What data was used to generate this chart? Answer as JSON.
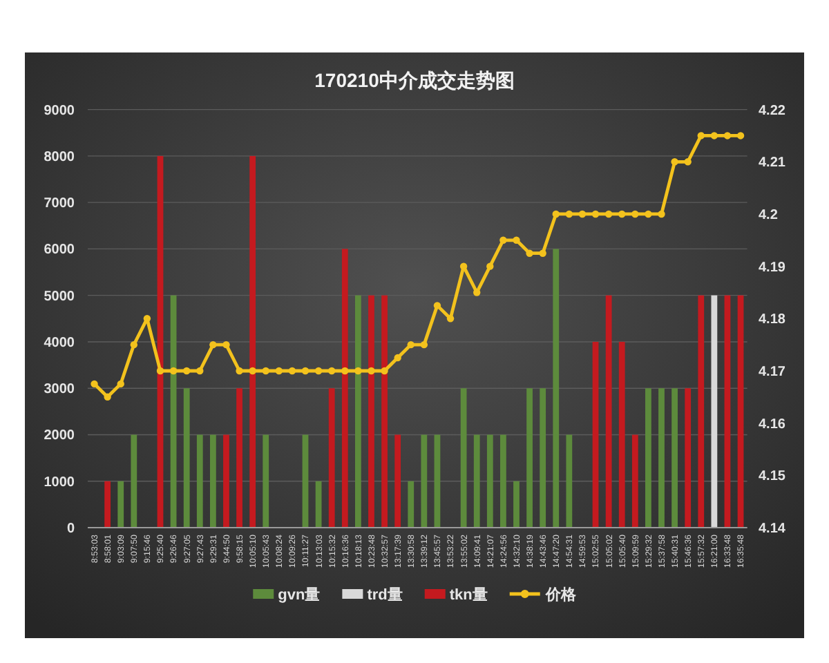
{
  "chart_data": {
    "type": "bar",
    "title": "170210中介成交走势图",
    "categories": [
      "8:53:03",
      "8:58:01",
      "9:03:09",
      "9:07:50",
      "9:15:46",
      "9:25:40",
      "9:26:46",
      "9:27:05",
      "9:27:43",
      "9:29:31",
      "9:44:50",
      "9:58:15",
      "10:05:10",
      "10:05:43",
      "10:08:24",
      "10:09:26",
      "10:11:27",
      "10:13:03",
      "10:15:32",
      "10:16:36",
      "10:18:13",
      "10:23:48",
      "10:32:57",
      "13:17:39",
      "13:30:58",
      "13:39:12",
      "13:45:57",
      "13:53:22",
      "13:55:02",
      "14:09:41",
      "14:21:07",
      "14:24:56",
      "14:32:10",
      "14:38:19",
      "14:43:46",
      "14:47:20",
      "14:54:31",
      "14:59:53",
      "15:02:55",
      "15:05:02",
      "15:05:40",
      "15:09:59",
      "15:29:32",
      "15:37:58",
      "15:40:31",
      "15:46:36",
      "15:57:32",
      "16:21:00",
      "16:33:48",
      "16:35:48"
    ],
    "series": [
      {
        "name": "gvn量",
        "color": "#5d8b3c",
        "values": [
          null,
          null,
          1000,
          2000,
          null,
          null,
          5000,
          3000,
          2000,
          2000,
          null,
          null,
          null,
          2000,
          null,
          null,
          2000,
          1000,
          null,
          null,
          5000,
          null,
          null,
          null,
          1000,
          2000,
          2000,
          null,
          3000,
          2000,
          2000,
          2000,
          1000,
          3000,
          3000,
          6000,
          2000,
          null,
          null,
          null,
          null,
          null,
          3000,
          3000,
          3000,
          null,
          null,
          null,
          null,
          null
        ]
      },
      {
        "name": "trd量",
        "color": "#d9d9d9",
        "values": [
          null,
          null,
          null,
          null,
          null,
          null,
          null,
          null,
          null,
          null,
          null,
          null,
          null,
          null,
          null,
          null,
          null,
          null,
          null,
          null,
          null,
          null,
          null,
          null,
          null,
          null,
          null,
          null,
          null,
          null,
          null,
          null,
          null,
          null,
          null,
          null,
          null,
          null,
          null,
          null,
          null,
          null,
          null,
          null,
          null,
          null,
          null,
          5000,
          null,
          null
        ]
      },
      {
        "name": "tkn量",
        "color": "#c41a1f",
        "values": [
          null,
          1000,
          null,
          null,
          null,
          8000,
          null,
          null,
          null,
          null,
          2000,
          3000,
          8000,
          null,
          null,
          null,
          null,
          null,
          3000,
          6000,
          null,
          5000,
          5000,
          2000,
          null,
          null,
          null,
          null,
          null,
          null,
          null,
          null,
          null,
          null,
          null,
          null,
          null,
          null,
          4000,
          5000,
          4000,
          2000,
          null,
          null,
          null,
          3000,
          5000,
          null,
          5000,
          5000
        ]
      },
      {
        "name": "价格",
        "type": "line",
        "axis": "y2",
        "color": "#f3c21d",
        "values": [
          4.1675,
          4.165,
          4.1675,
          4.175,
          4.18,
          4.17,
          4.17,
          4.17,
          4.17,
          4.175,
          4.175,
          4.17,
          4.17,
          4.17,
          4.17,
          4.17,
          4.17,
          4.17,
          4.17,
          4.17,
          4.17,
          4.17,
          4.17,
          4.1725,
          4.175,
          4.175,
          4.1825,
          4.18,
          4.19,
          4.185,
          4.19,
          4.195,
          4.195,
          4.1925,
          4.1925,
          4.2,
          4.2,
          4.2,
          4.2,
          4.2,
          4.2,
          4.2,
          4.2,
          4.2,
          4.21,
          4.21,
          4.215,
          4.215,
          4.215,
          4.215
        ]
      }
    ],
    "stacked": true,
    "ylim": [
      0,
      9000
    ],
    "yticks": [
      0,
      1000,
      2000,
      3000,
      4000,
      5000,
      6000,
      7000,
      8000,
      9000
    ],
    "y2lim": [
      4.14,
      4.22
    ],
    "y2ticks": [
      4.14,
      4.15,
      4.16,
      4.17,
      4.18,
      4.19,
      4.2,
      4.21,
      4.22
    ],
    "grid": "y",
    "legend": "bottom",
    "marker": "circle",
    "line_style": "solid"
  }
}
